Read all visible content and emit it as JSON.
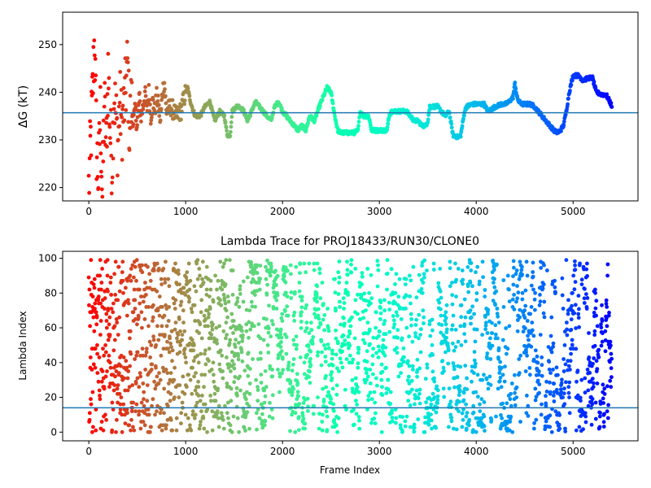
{
  "chart_data": [
    {
      "type": "scatter",
      "title": "",
      "xlabel": "",
      "ylabel": "ΔG (kT)",
      "xlim": [
        -270,
        5670
      ],
      "ylim": [
        217.2,
        256.8
      ],
      "xticks": [
        0,
        1000,
        2000,
        3000,
        4000,
        5000
      ],
      "yticks": [
        220,
        230,
        240,
        250
      ],
      "hline": 235.7,
      "hline_color": "#1f77b4",
      "colormap": "rainbow (color = frame index, red at start to violet at end)",
      "segments": [
        [
          0,
          220
        ],
        [
          20,
          230
        ],
        [
          40,
          240
        ],
        [
          60,
          252
        ],
        [
          80,
          228
        ],
        [
          100,
          222
        ],
        [
          120,
          236
        ],
        [
          140,
          218
        ],
        [
          160,
          238
        ],
        [
          180,
          228
        ],
        [
          200,
          245
        ],
        [
          220,
          232
        ],
        [
          240,
          225
        ],
        [
          260,
          240
        ],
        [
          280,
          235
        ],
        [
          300,
          229
        ],
        [
          320,
          238
        ],
        [
          340,
          233
        ],
        [
          360,
          236
        ],
        [
          380,
          240
        ],
        [
          400,
          246
        ],
        [
          420,
          232
        ],
        [
          440,
          238
        ],
        [
          460,
          234
        ],
        [
          480,
          236
        ],
        [
          500,
          233
        ],
        [
          520,
          239
        ],
        [
          540,
          235
        ],
        [
          560,
          237
        ],
        [
          580,
          240
        ],
        [
          600,
          236
        ],
        [
          620,
          240
        ],
        [
          640,
          235
        ],
        [
          660,
          238
        ],
        [
          680,
          236
        ],
        [
          700,
          239
        ],
        [
          720,
          237
        ],
        [
          740,
          234
        ],
        [
          760,
          240
        ],
        [
          780,
          242
        ],
        [
          800,
          236
        ],
        [
          850,
          237
        ],
        [
          900,
          235
        ],
        [
          950,
          236
        ],
        [
          1000,
          240
        ],
        [
          1020,
          241
        ],
        [
          1050,
          238
        ],
        [
          1080,
          236
        ],
        [
          1100,
          235
        ],
        [
          1150,
          235
        ],
        [
          1200,
          237
        ],
        [
          1250,
          238
        ],
        [
          1300,
          234
        ],
        [
          1350,
          236
        ],
        [
          1400,
          235
        ],
        [
          1430,
          231
        ],
        [
          1460,
          231
        ],
        [
          1480,
          236
        ],
        [
          1520,
          237
        ],
        [
          1560,
          237
        ],
        [
          1600,
          236
        ],
        [
          1640,
          234
        ],
        [
          1680,
          236
        ],
        [
          1720,
          238
        ],
        [
          1760,
          237
        ],
        [
          1800,
          236
        ],
        [
          1840,
          235
        ],
        [
          1880,
          234
        ],
        [
          1920,
          237
        ],
        [
          1960,
          238
        ],
        [
          2000,
          236
        ],
        [
          2040,
          235
        ],
        [
          2080,
          234
        ],
        [
          2120,
          233
        ],
        [
          2160,
          232
        ],
        [
          2200,
          233
        ],
        [
          2240,
          232
        ],
        [
          2280,
          235
        ],
        [
          2330,
          234
        ],
        [
          2380,
          237
        ],
        [
          2420,
          239
        ],
        [
          2460,
          241
        ],
        [
          2500,
          240
        ],
        [
          2540,
          235
        ],
        [
          2570,
          232
        ],
        [
          2600,
          231.5
        ],
        [
          2700,
          231.5
        ],
        [
          2740,
          231.5
        ],
        [
          2780,
          232
        ],
        [
          2800,
          236
        ],
        [
          2840,
          235
        ],
        [
          2880,
          235
        ],
        [
          2890,
          235
        ],
        [
          2920,
          232
        ],
        [
          3000,
          232
        ],
        [
          3080,
          232
        ],
        [
          3100,
          235
        ],
        [
          3120,
          236
        ],
        [
          3160,
          236
        ],
        [
          3200,
          236
        ],
        [
          3240,
          236
        ],
        [
          3280,
          236
        ],
        [
          3320,
          235
        ],
        [
          3360,
          234
        ],
        [
          3400,
          234
        ],
        [
          3440,
          233
        ],
        [
          3480,
          233
        ],
        [
          3500,
          234
        ],
        [
          3520,
          237
        ],
        [
          3560,
          237
        ],
        [
          3600,
          237
        ],
        [
          3640,
          236
        ],
        [
          3680,
          235
        ],
        [
          3720,
          236
        ],
        [
          3760,
          231
        ],
        [
          3820,
          230.5
        ],
        [
          3840,
          231
        ],
        [
          3880,
          236
        ],
        [
          3900,
          237
        ],
        [
          3960,
          237.5
        ],
        [
          4000,
          237.5
        ],
        [
          4080,
          237.5
        ],
        [
          4120,
          236
        ],
        [
          4160,
          236.5
        ],
        [
          4200,
          237
        ],
        [
          4260,
          237.5
        ],
        [
          4300,
          237.5
        ],
        [
          4340,
          238
        ],
        [
          4380,
          239
        ],
        [
          4400,
          242
        ],
        [
          4420,
          239
        ],
        [
          4440,
          238
        ],
        [
          4480,
          237.5
        ],
        [
          4520,
          237.5
        ],
        [
          4560,
          237.5
        ],
        [
          4600,
          237
        ],
        [
          4640,
          236
        ],
        [
          4680,
          235
        ],
        [
          4720,
          234
        ],
        [
          4760,
          233
        ],
        [
          4800,
          232
        ],
        [
          4840,
          231.5
        ],
        [
          4870,
          232
        ],
        [
          4900,
          233
        ],
        [
          4930,
          236
        ],
        [
          4960,
          240
        ],
        [
          5000,
          243.5
        ],
        [
          5060,
          243.5
        ],
        [
          5100,
          242.5
        ],
        [
          5160,
          243
        ],
        [
          5200,
          243
        ],
        [
          5240,
          240
        ],
        [
          5300,
          239.5
        ],
        [
          5340,
          239.5
        ],
        [
          5380,
          238
        ],
        [
          5400,
          237
        ]
      ]
    },
    {
      "type": "scatter",
      "title": "Lambda Trace for PROJ18433/RUN30/CLONE0",
      "xlabel": "Frame Index",
      "ylabel": "Lambda Index",
      "xlim": [
        -270,
        5670
      ],
      "ylim": [
        -5,
        104
      ],
      "xticks": [
        0,
        1000,
        2000,
        3000,
        4000,
        5000
      ],
      "yticks": [
        0,
        20,
        40,
        60,
        80,
        100
      ],
      "hline": 14,
      "hline_color": "#1f77b4",
      "colormap": "rainbow (color = frame index, red at start to violet at end)",
      "n_frames": 5400,
      "value_range": [
        0,
        99
      ]
    }
  ]
}
